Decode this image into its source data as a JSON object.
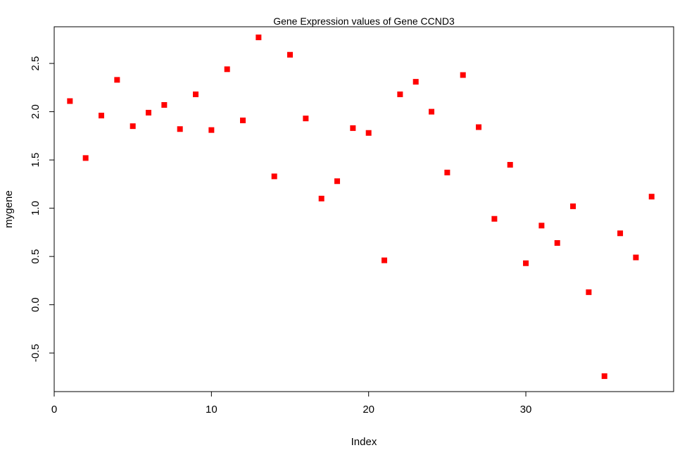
{
  "chart_data": {
    "type": "scatter",
    "title": "Gene Expression values of Gene CCND3",
    "xlabel": "Index",
    "ylabel": "mygene",
    "xlim": [
      0,
      39.4
    ],
    "ylim": [
      -0.9,
      2.88
    ],
    "xticks": [
      0,
      10,
      20,
      30
    ],
    "yticks": [
      -0.5,
      0.0,
      0.5,
      1.0,
      1.5,
      2.0,
      2.5
    ],
    "xtick_labels": [
      "0",
      "10",
      "20",
      "30"
    ],
    "ytick_labels": [
      "-0.5",
      "0.0",
      "0.5",
      "1.0",
      "1.5",
      "2.0",
      "2.5"
    ],
    "grid": false,
    "marker_color": "#ff0000",
    "series": [
      {
        "x": [
          1,
          2,
          3,
          4,
          5,
          6,
          7,
          8,
          9,
          10,
          11,
          12,
          13,
          14,
          15,
          16,
          17,
          18,
          19,
          20,
          21,
          22,
          23,
          24,
          25,
          26,
          27,
          28,
          29,
          30,
          31,
          32,
          33,
          34,
          35,
          36,
          37,
          38
        ],
        "values": [
          2.11,
          1.52,
          1.96,
          2.33,
          1.85,
          1.99,
          2.07,
          1.82,
          2.18,
          1.81,
          2.44,
          1.91,
          2.77,
          1.33,
          2.59,
          1.93,
          1.1,
          1.28,
          1.83,
          1.78,
          0.46,
          2.18,
          2.31,
          2.0,
          1.37,
          2.38,
          1.84,
          0.89,
          1.45,
          0.43,
          0.82,
          0.64,
          1.02,
          0.13,
          -0.74,
          0.74,
          0.49,
          1.12
        ]
      }
    ]
  }
}
